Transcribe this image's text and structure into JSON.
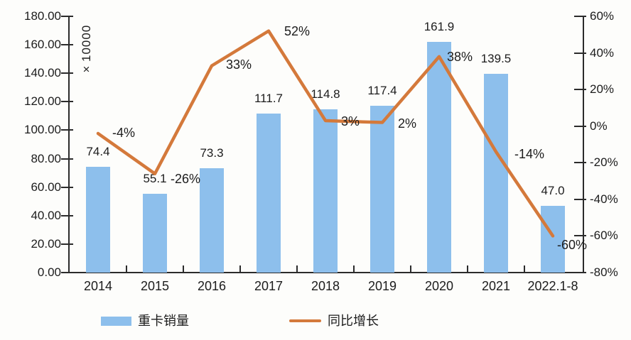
{
  "chart_data": {
    "type": "bar+line combo",
    "categories": [
      "2014",
      "2015",
      "2016",
      "2017",
      "2018",
      "2019",
      "2020",
      "2021",
      "2022.1-8"
    ],
    "series": [
      {
        "name": "重卡销量",
        "type": "bar",
        "axis": "left",
        "values": [
          74.4,
          55.1,
          73.3,
          111.7,
          114.8,
          117.4,
          161.9,
          139.5,
          47.0
        ],
        "labels": [
          "74.4",
          "55.1",
          "73.3",
          "111.7",
          "114.8",
          "117.4",
          "161.9",
          "139.5",
          "47.0"
        ]
      },
      {
        "name": "同比增长",
        "type": "line",
        "axis": "right",
        "values": [
          -4,
          -26,
          33,
          52,
          3,
          2,
          38,
          -14,
          -60
        ],
        "labels": [
          "-4%",
          "-26%",
          "33%",
          "52%",
          "3%",
          "2%",
          "38%",
          "-14%",
          "-60%"
        ]
      }
    ],
    "left_axis": {
      "min": 0,
      "max": 180,
      "tick_labels": [
        "0.00",
        "20.00",
        "40.00",
        "60.00",
        "80.00",
        "100.00",
        "120.00",
        "140.00",
        "160.00",
        "180.00"
      ],
      "unit_label": "×10000"
    },
    "right_axis": {
      "min": -80,
      "max": 60,
      "tick_labels": [
        "-80%",
        "-60%",
        "-40%",
        "-20%",
        "0%",
        "20%",
        "40%",
        "60%"
      ]
    },
    "grid": false,
    "legend_position": "bottom",
    "legend": [
      {
        "label": "重卡销量",
        "marker": "bar"
      },
      {
        "label": "同比增长",
        "marker": "line"
      }
    ]
  },
  "colors": {
    "bar": "#8dbfec",
    "line": "#d4793b",
    "axis": "#2b2b2b",
    "text": "#1c1c1c",
    "background": "#fdfdfb"
  }
}
